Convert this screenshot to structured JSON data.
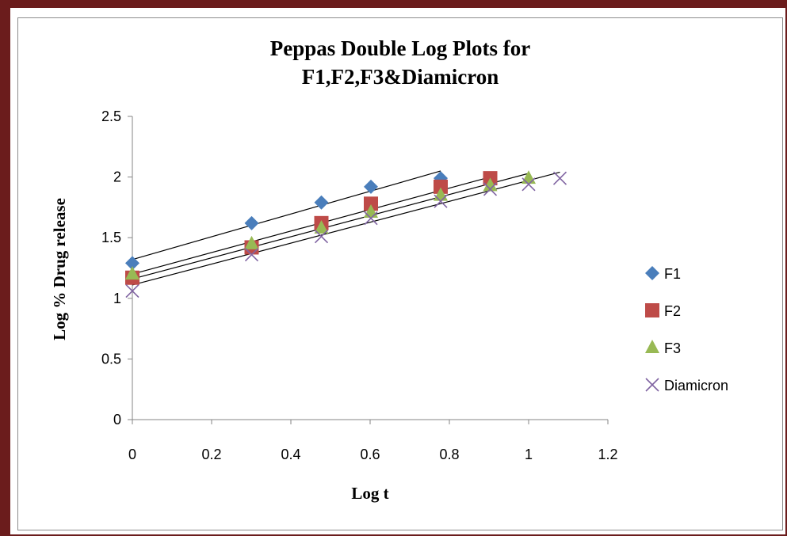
{
  "chart_data": {
    "type": "scatter",
    "title_lines": [
      "Peppas Double Log Plots for",
      "F1,F2,F3&Diamicron"
    ],
    "xlabel": "Log t",
    "ylabel": "Log % Drug release",
    "xlim": [
      0,
      1.2
    ],
    "ylim": [
      0,
      2.5
    ],
    "x_ticks": [
      "0",
      "0.2",
      "0.4",
      "0.6",
      "0.8",
      "1",
      "1.2"
    ],
    "y_ticks": [
      "0",
      "0.5",
      "1",
      "1.5",
      "2",
      "2.5"
    ],
    "x_tick_values": [
      0,
      0.2,
      0.4,
      0.6,
      0.8,
      1.0,
      1.2
    ],
    "y_tick_values": [
      0,
      0.5,
      1.0,
      1.5,
      2.0,
      2.5
    ],
    "grid": false,
    "legend_position": "right",
    "series": [
      {
        "name": "F1",
        "marker": "diamond",
        "color": "#4a7ebb",
        "x": [
          0,
          0.301,
          0.477,
          0.602,
          0.778
        ],
        "y": [
          1.29,
          1.62,
          1.79,
          1.92,
          1.99
        ],
        "trendline": {
          "x": [
            0,
            0.778
          ],
          "y": [
            1.32,
            2.05
          ]
        }
      },
      {
        "name": "F2",
        "marker": "square",
        "color": "#be4b48",
        "x": [
          0,
          0.301,
          0.477,
          0.602,
          0.778,
          0.903
        ],
        "y": [
          1.17,
          1.42,
          1.62,
          1.78,
          1.92,
          1.99
        ],
        "trendline": {
          "x": [
            0,
            0.903
          ],
          "y": [
            1.2,
            2.0
          ]
        }
      },
      {
        "name": "F3",
        "marker": "triangle",
        "color": "#98b954",
        "x": [
          0,
          0.301,
          0.477,
          0.602,
          0.778,
          0.903,
          1.0
        ],
        "y": [
          1.2,
          1.45,
          1.58,
          1.71,
          1.85,
          1.93,
          1.99
        ],
        "trendline": {
          "x": [
            0,
            1.0
          ],
          "y": [
            1.16,
            2.03
          ]
        }
      },
      {
        "name": "Diamicron",
        "marker": "x",
        "color": "#8064a2",
        "x": [
          0,
          0.301,
          0.477,
          0.602,
          0.778,
          0.903,
          1.0,
          1.079
        ],
        "y": [
          1.06,
          1.36,
          1.51,
          1.66,
          1.8,
          1.9,
          1.94,
          1.99
        ],
        "trendline": {
          "x": [
            0,
            1.079
          ],
          "y": [
            1.11,
            2.04
          ]
        }
      }
    ]
  }
}
